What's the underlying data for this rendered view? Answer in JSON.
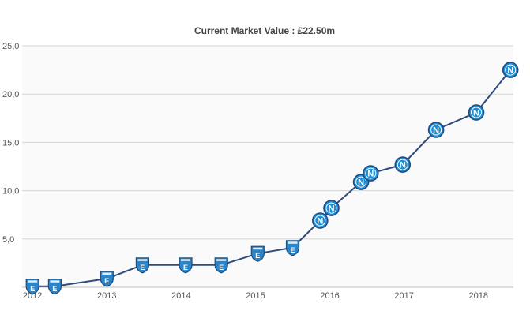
{
  "chart_data": {
    "type": "line",
    "title": "Current Market Value : £22.50m",
    "xlabel": "",
    "ylabel": "",
    "xlim": [
      2011.86,
      2018.47
    ],
    "ylim": [
      0,
      25
    ],
    "grid": "horizontal",
    "legend": "none",
    "x_ticks": [
      "2012",
      "2013",
      "2014",
      "2015",
      "2016",
      "2017",
      "2018"
    ],
    "y_ticks": [
      "5,0",
      "10,0",
      "15,0",
      "20,0",
      "25,0"
    ],
    "colors": {
      "line": "#2f4a7c",
      "grid": "#d4d4d4",
      "plot_bg": "#fafafa",
      "club_a_badge": "#2a84c9",
      "club_b_badge": "#1c8fd6"
    },
    "series": [
      {
        "x": [
          2012.0,
          2012.3,
          2013.0,
          2013.48,
          2014.06,
          2014.54,
          2015.03,
          2015.5,
          2015.87,
          2016.02,
          2016.42,
          2016.55,
          2016.98,
          2017.43,
          2017.97,
          2018.43
        ],
        "y": [
          0.1,
          0.1,
          0.9,
          2.3,
          2.3,
          2.3,
          3.5,
          4.1,
          6.9,
          8.2,
          10.9,
          11.8,
          12.7,
          16.3,
          18.1,
          22.5
        ],
        "badge": [
          "club-a",
          "club-a",
          "club-a",
          "club-a",
          "club-a",
          "club-a",
          "club-a",
          "club-a",
          "club-b",
          "club-b",
          "club-b",
          "club-b",
          "club-b",
          "club-b",
          "club-b",
          "club-b"
        ]
      }
    ],
    "badge_text": {
      "club-a": "E",
      "club-b": "N"
    }
  }
}
